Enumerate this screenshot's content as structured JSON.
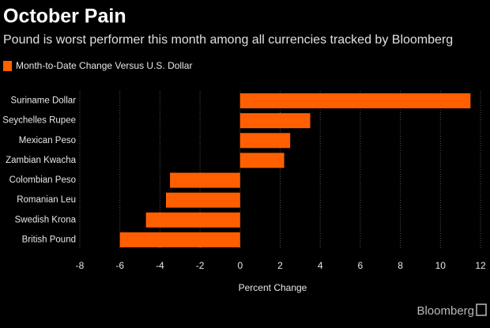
{
  "chart_data": {
    "type": "barh",
    "title": "October Pain",
    "subtitle": "Pound is worst performer this month among all currencies tracked by Bloomberg",
    "categories": [
      "Suriname Dollar",
      "Seychelles Rupee",
      "Mexican Peso",
      "Zambian Kwacha",
      "Colombian Peso",
      "Romanian Leu",
      "Swedish Krona",
      "British Pound"
    ],
    "series": [
      {
        "name": "Month-to-Date Change Versus U.S. Dollar",
        "color": "#ff5f00",
        "values": [
          11.5,
          3.5,
          2.5,
          2.2,
          -3.5,
          -3.7,
          -4.7,
          -6.0
        ]
      }
    ],
    "xlabel": "Percent Change",
    "xlim": [
      -8,
      12
    ],
    "xticks": [
      -8,
      -6,
      -4,
      -2,
      0,
      2,
      4,
      6,
      8,
      10,
      12
    ],
    "grid": true,
    "source": "Bloomberg"
  }
}
